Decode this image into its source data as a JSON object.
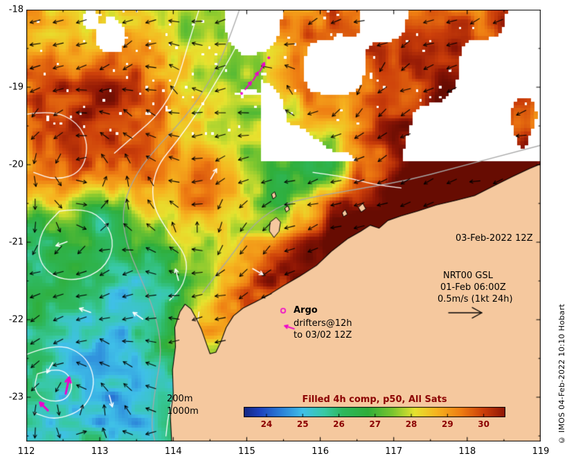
{
  "axes": {
    "x_ticks": [
      "112",
      "113",
      "114",
      "115",
      "116",
      "117",
      "118",
      "119"
    ],
    "y_ticks": [
      "-18",
      "-19",
      "-20",
      "-21",
      "-22",
      "-23"
    ]
  },
  "annotations": {
    "analysis_time": "03-Feb-2022 12Z",
    "field_name": "NRT00 GSL",
    "field_time": "01-Feb 06:00Z",
    "vector_scale": "0.5m/s (1kt 24h)",
    "argo_label": "Argo",
    "drifters_label": "drifters@12h",
    "drifters_until": "to 03/02 12Z",
    "contour_200": "200m",
    "contour_1000": "1000m"
  },
  "colorbar": {
    "title": "Filled 4h comp, p50, All Sats",
    "ticks": [
      "24",
      "25",
      "26",
      "27",
      "28",
      "29",
      "30"
    ],
    "tick_values": [
      24,
      25,
      26,
      27,
      28,
      29,
      30
    ],
    "vmin": 23.37,
    "vmax": 30.6,
    "title_color": "#8b0000"
  },
  "credit": "© IMOS 04-Feb-2022 10:10 Hobart",
  "chart_data": {
    "type": "heatmap",
    "title": "Filled 4h comp, p50, All Sats",
    "lon_range": [
      112,
      119
    ],
    "lat_range": [
      -23.57,
      -18
    ],
    "value_range": [
      23.37,
      30.6
    ],
    "colormap_stops": [
      [
        23.2,
        "#101d6b"
      ],
      [
        23.8,
        "#1d41bd"
      ],
      [
        24.4,
        "#2b7fd8"
      ],
      [
        25.0,
        "#3fc0e8"
      ],
      [
        25.6,
        "#38c9a4"
      ],
      [
        26.1,
        "#2eb85e"
      ],
      [
        26.8,
        "#2fae3a"
      ],
      [
        27.5,
        "#7cc62f"
      ],
      [
        28.1,
        "#e6e32f"
      ],
      [
        28.7,
        "#f6b41f"
      ],
      [
        29.4,
        "#ee7c12"
      ],
      [
        30.0,
        "#cc3f0a"
      ],
      [
        30.6,
        "#8f1605"
      ],
      [
        31.2,
        "#5f0a02"
      ]
    ],
    "colors": {
      "land": "#f5c89e",
      "coast": "#000000",
      "magenta": "#ee00cc",
      "contour_white": "#ffffff",
      "contour_gray": "#a8a8a8",
      "arrow": "#000000"
    },
    "land": [
      [
        113.98,
        -23.6
      ],
      [
        113.96,
        -23.25
      ],
      [
        114.0,
        -22.95
      ],
      [
        113.99,
        -22.65
      ],
      [
        114.03,
        -22.35
      ],
      [
        114.02,
        -22.1
      ],
      [
        114.09,
        -21.9
      ],
      [
        114.16,
        -21.8
      ],
      [
        114.24,
        -21.86
      ],
      [
        114.31,
        -21.98
      ],
      [
        114.38,
        -22.12
      ],
      [
        114.44,
        -22.28
      ],
      [
        114.5,
        -22.44
      ],
      [
        114.58,
        -22.42
      ],
      [
        114.65,
        -22.28
      ],
      [
        114.72,
        -22.1
      ],
      [
        114.82,
        -21.95
      ],
      [
        114.95,
        -21.85
      ],
      [
        115.1,
        -21.78
      ],
      [
        115.3,
        -21.68
      ],
      [
        115.5,
        -21.56
      ],
      [
        115.72,
        -21.44
      ],
      [
        115.95,
        -21.3
      ],
      [
        116.15,
        -21.12
      ],
      [
        116.38,
        -20.95
      ],
      [
        116.55,
        -20.86
      ],
      [
        116.68,
        -20.78
      ],
      [
        116.8,
        -20.82
      ],
      [
        116.92,
        -20.72
      ],
      [
        117.1,
        -20.66
      ],
      [
        117.32,
        -20.6
      ],
      [
        117.58,
        -20.52
      ],
      [
        117.85,
        -20.46
      ],
      [
        118.1,
        -20.4
      ],
      [
        118.35,
        -20.28
      ],
      [
        118.6,
        -20.16
      ],
      [
        118.85,
        -20.05
      ],
      [
        119.1,
        -19.95
      ],
      [
        119.1,
        -23.8
      ],
      [
        113.98,
        -23.8
      ]
    ],
    "islands": [
      [
        [
          115.32,
          -20.74
        ],
        [
          115.4,
          -20.68
        ],
        [
          115.46,
          -20.74
        ],
        [
          115.44,
          -20.86
        ],
        [
          115.37,
          -20.94
        ],
        [
          115.31,
          -20.86
        ]
      ],
      [
        [
          115.52,
          -20.56
        ],
        [
          115.56,
          -20.53
        ],
        [
          115.58,
          -20.58
        ],
        [
          115.54,
          -20.61
        ]
      ],
      [
        [
          115.34,
          -20.38
        ],
        [
          115.38,
          -20.35
        ],
        [
          115.4,
          -20.41
        ],
        [
          115.36,
          -20.44
        ]
      ],
      [
        [
          116.52,
          -20.55
        ],
        [
          116.58,
          -20.5
        ],
        [
          116.62,
          -20.57
        ],
        [
          116.56,
          -20.61
        ]
      ],
      [
        [
          116.3,
          -20.62
        ],
        [
          116.34,
          -20.58
        ],
        [
          116.37,
          -20.64
        ],
        [
          116.32,
          -20.67
        ]
      ]
    ],
    "blobs": [
      [
        114.35,
        -22.15,
        0.3,
        2.0
      ],
      [
        114.9,
        -21.8,
        0.35,
        2.2
      ],
      [
        115.5,
        -21.5,
        0.4,
        2.3
      ],
      [
        116.1,
        -21.1,
        0.42,
        2.5
      ],
      [
        116.7,
        -20.85,
        0.45,
        2.5
      ],
      [
        117.4,
        -20.62,
        0.45,
        2.5
      ],
      [
        118.1,
        -20.42,
        0.45,
        2.6
      ],
      [
        118.75,
        -20.18,
        0.45,
        2.7
      ],
      [
        112.45,
        -19.25,
        1.1,
        1.3
      ],
      [
        113.5,
        -19.9,
        0.9,
        1.0
      ],
      [
        112.25,
        -20.55,
        0.6,
        0.85
      ],
      [
        114.4,
        -20.55,
        0.45,
        1.05
      ],
      [
        116.9,
        -19.2,
        0.95,
        1.5
      ],
      [
        118.25,
        -18.6,
        0.9,
        1.45
      ],
      [
        115.9,
        -18.35,
        0.45,
        1.0
      ],
      [
        117.6,
        -19.85,
        0.55,
        1.2
      ],
      [
        113.1,
        -18.7,
        0.5,
        0.7
      ],
      [
        112.7,
        -23.1,
        1.1,
        -0.9
      ],
      [
        113.3,
        -22.05,
        0.8,
        -1.0
      ],
      [
        112.4,
        -21.1,
        0.7,
        -0.9
      ],
      [
        113.05,
        -20.72,
        0.22,
        -2.1
      ],
      [
        112.05,
        -20.88,
        0.3,
        -1.6
      ],
      [
        115.55,
        -20.35,
        0.45,
        -1.3
      ],
      [
        114.9,
        -19.1,
        0.6,
        -0.9
      ],
      [
        114.15,
        -18.35,
        0.4,
        -1.0
      ],
      [
        113.9,
        -21.3,
        0.5,
        -0.7
      ],
      [
        116.15,
        -19.95,
        0.22,
        -1.9
      ],
      [
        112.85,
        -18.25,
        0.4,
        -0.95
      ],
      [
        113.6,
        -23.3,
        0.5,
        -0.6
      ]
    ],
    "white_spots": [
      [
        113.15,
        -18.35,
        0.22
      ],
      [
        112.88,
        -18.12,
        0.13
      ]
    ],
    "contours_white": [
      [
        [
          115.1,
          -18.0
        ],
        [
          114.85,
          -18.5
        ],
        [
          114.6,
          -18.9
        ],
        [
          114.35,
          -19.3
        ],
        [
          114.05,
          -19.7
        ],
        [
          113.75,
          -20.05
        ],
        [
          113.7,
          -20.5
        ],
        [
          113.95,
          -20.9
        ],
        [
          114.2,
          -21.2
        ],
        [
          114.15,
          -21.55
        ],
        [
          113.95,
          -21.75
        ]
      ],
      [
        [
          112.45,
          -20.6
        ],
        [
          112.8,
          -20.55
        ],
        [
          113.1,
          -20.75
        ],
        [
          113.2,
          -21.05
        ],
        [
          113.05,
          -21.35
        ],
        [
          112.7,
          -21.5
        ],
        [
          112.35,
          -21.45
        ],
        [
          112.15,
          -21.2
        ],
        [
          112.2,
          -20.85
        ],
        [
          112.45,
          -20.6
        ]
      ],
      [
        [
          112.0,
          -22.45
        ],
        [
          112.4,
          -22.3
        ],
        [
          112.8,
          -22.45
        ],
        [
          112.95,
          -22.8
        ],
        [
          112.8,
          -23.15
        ],
        [
          112.4,
          -23.3
        ],
        [
          112.1,
          -23.2
        ]
      ],
      [
        [
          112.15,
          -22.7
        ],
        [
          112.45,
          -22.6
        ],
        [
          112.65,
          -22.8
        ],
        [
          112.55,
          -23.05
        ],
        [
          112.25,
          -23.05
        ],
        [
          112.1,
          -22.9
        ],
        [
          112.15,
          -22.7
        ]
      ],
      [
        [
          112.0,
          -19.35
        ],
        [
          112.35,
          -19.3
        ],
        [
          112.7,
          -19.45
        ],
        [
          112.85,
          -19.75
        ],
        [
          112.75,
          -20.1
        ],
        [
          112.4,
          -20.2
        ],
        [
          112.1,
          -20.1
        ]
      ],
      [
        [
          114.35,
          -18.0
        ],
        [
          114.2,
          -18.45
        ],
        [
          114.05,
          -18.95
        ],
        [
          113.8,
          -19.35
        ],
        [
          113.5,
          -19.6
        ],
        [
          113.2,
          -19.85
        ]
      ],
      [
        [
          115.9,
          -20.1
        ],
        [
          116.3,
          -20.15
        ],
        [
          116.7,
          -20.25
        ],
        [
          117.1,
          -20.3
        ]
      ],
      [
        [
          114.35,
          -21.9
        ],
        [
          114.3,
          -22.3
        ],
        [
          114.15,
          -22.7
        ],
        [
          113.95,
          -23.1
        ],
        [
          113.9,
          -23.5
        ]
      ]
    ],
    "contours_gray": [
      [
        [
          114.9,
          -18.0
        ],
        [
          114.7,
          -18.55
        ],
        [
          114.45,
          -19.0
        ],
        [
          114.15,
          -19.4
        ],
        [
          113.8,
          -19.75
        ],
        [
          113.5,
          -20.1
        ],
        [
          113.3,
          -20.55
        ],
        [
          113.35,
          -21.0
        ],
        [
          113.55,
          -21.45
        ],
        [
          113.75,
          -21.9
        ],
        [
          113.85,
          -22.4
        ],
        [
          113.75,
          -22.9
        ],
        [
          113.7,
          -23.35
        ],
        [
          113.75,
          -23.57
        ]
      ],
      [
        [
          119.0,
          -19.75
        ],
        [
          118.4,
          -19.9
        ],
        [
          117.8,
          -20.05
        ],
        [
          117.2,
          -20.2
        ],
        [
          116.6,
          -20.3
        ],
        [
          116.0,
          -20.4
        ],
        [
          115.5,
          -20.5
        ],
        [
          115.1,
          -20.75
        ],
        [
          114.85,
          -21.1
        ],
        [
          114.6,
          -21.4
        ],
        [
          114.4,
          -21.65
        ]
      ]
    ],
    "eddies": [
      [
        112.7,
        -19.85,
        0.85,
        1.5
      ],
      [
        112.6,
        -22.85,
        0.75,
        1.3
      ],
      [
        114.5,
        -21.15,
        0.6,
        -1.2
      ],
      [
        113.7,
        -18.6,
        0.55,
        1.1
      ],
      [
        116.0,
        -19.3,
        0.7,
        -1.0
      ]
    ],
    "bg_flow": [
      -0.3,
      -0.1
    ],
    "white_arrows": [
      [
        112.48,
        -21.02,
        160
      ],
      [
        112.8,
        -21.88,
        200
      ],
      [
        113.52,
        -21.95,
        215
      ],
      [
        114.05,
        -21.42,
        255
      ],
      [
        112.32,
        -22.62,
        120
      ],
      [
        113.15,
        -23.05,
        75
      ],
      [
        115.15,
        -21.38,
        30
      ],
      [
        114.55,
        -20.12,
        300
      ]
    ],
    "drifter_arrows": [
      [
        115.02,
        -18.98,
        -52,
        14,
        2
      ],
      [
        115.12,
        -18.86,
        -58,
        14,
        2
      ],
      [
        115.21,
        -18.74,
        -62,
        14,
        2
      ],
      [
        112.56,
        -22.85,
        -78,
        24,
        3
      ],
      [
        112.24,
        -23.12,
        -135,
        16,
        3
      ]
    ],
    "drifter_dots": [
      [
        115.3,
        -18.62
      ],
      [
        114.93,
        -19.08
      ]
    ]
  }
}
